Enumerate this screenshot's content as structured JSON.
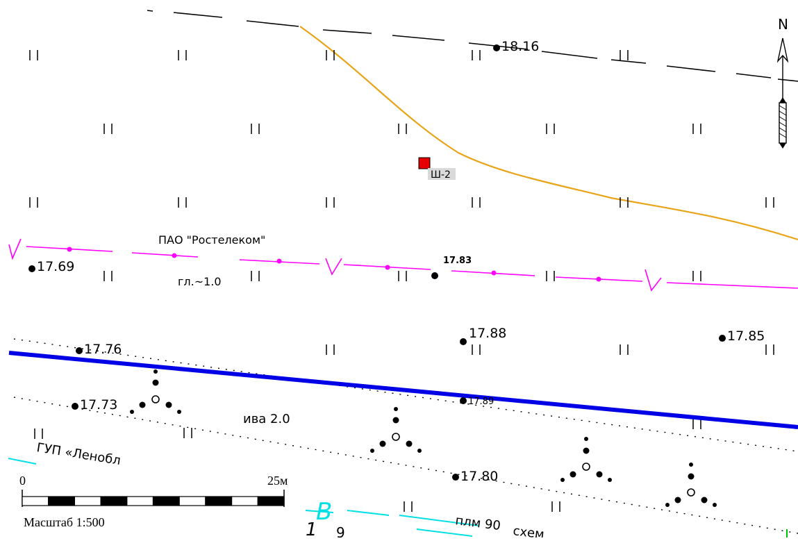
{
  "north_label": "N",
  "elevations": [
    "18.16",
    "17.69",
    "17.83",
    "17.88",
    "17.85",
    "17.76",
    "17.73",
    "17.89",
    "17.80"
  ],
  "well_label": "Ш-2",
  "cable": {
    "owner": "ПАО \"Ростелеком\"",
    "depth": "гл.~1.0"
  },
  "tree_label": "ива 2.0",
  "other_owner": "ГУП «Ленобл",
  "bottom_texts": [
    "B",
    "1",
    "9",
    "плм 90",
    "схем"
  ],
  "scale_bar": {
    "start": "0",
    "end": "25м",
    "caption": "Масштаб 1:500",
    "segments": 10
  },
  "colors": {
    "boundary": "#e8a317",
    "cable": "#ff00ff",
    "main_line": "#0000e6",
    "water": "#00e0e6",
    "well": "#e60000",
    "ink": "#000000"
  }
}
